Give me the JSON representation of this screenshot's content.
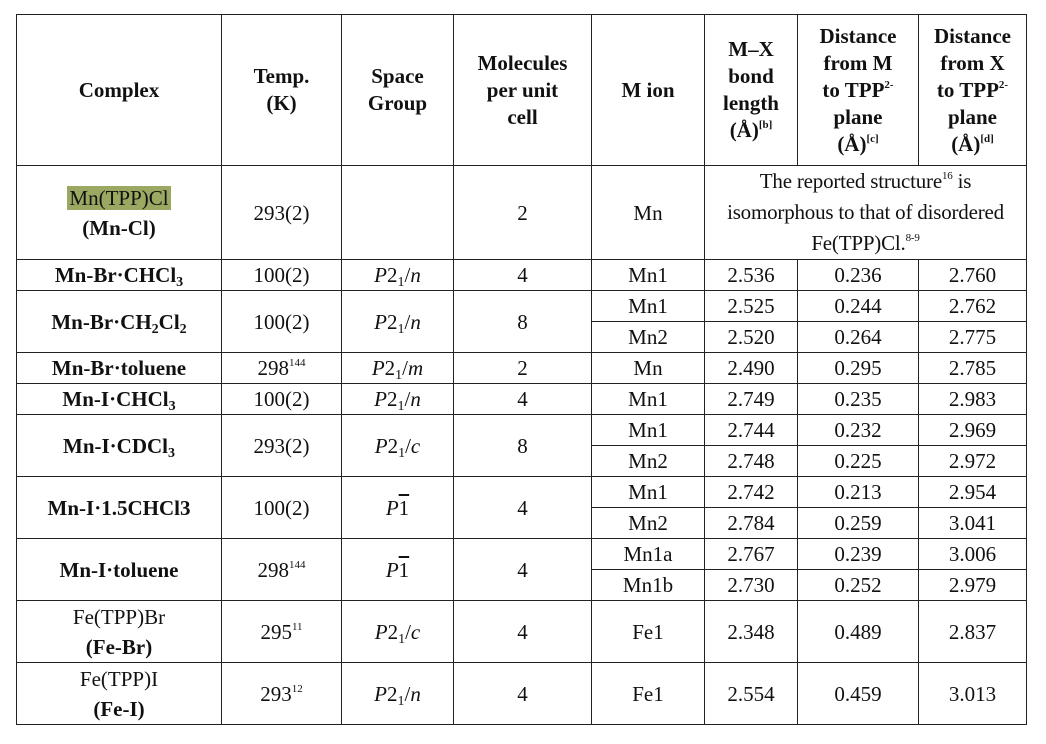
{
  "headers": {
    "complex": "Complex",
    "temp_1": "Temp.",
    "temp_2": "(K)",
    "space_1": "Space",
    "space_2": "Group",
    "mol_1": "Molecules",
    "mol_2": "per unit",
    "mol_3": "cell",
    "mion": "M ion",
    "mx_1": "M–X",
    "mx_2": "bond",
    "mx_3": "length",
    "mx_4": "(Å)",
    "mx_sup": "[b]",
    "dm_1": "Distance",
    "dm_2": "from M",
    "dm_3": "to TPP",
    "dm_sup": "2-",
    "dm_4": "plane",
    "dm_5": "(Å)",
    "dm_sup2": "[c]",
    "dx_1": "Distance",
    "dx_2": "from X",
    "dx_3": "to TPP",
    "dx_sup": "2-",
    "dx_4": "plane",
    "dx_5": "(Å)",
    "dx_sup2": "[d]"
  },
  "r1": {
    "name": "Mn(TPP)Cl",
    "label": "(Mn-Cl)",
    "temp": "293(2)",
    "mol": "2",
    "ion": "Mn",
    "note_1": "The reported structure",
    "note_1_sup": "16",
    "note_1_end": " is",
    "note_2": "isomorphous to that of disordered",
    "note_3": "Fe(TPP)Cl.",
    "note_3_sup": "8-9"
  },
  "r2": {
    "name_a": "Mn-Br·CHCl",
    "name_sub": "3",
    "temp": "100(2)",
    "sg_a": "P",
    "sg_2": "2",
    "sg_sub": "1",
    "sg_b": "/",
    "sg_c": "n",
    "mol": "4",
    "ion": "Mn1",
    "mx": "2.536",
    "dm": "0.236",
    "dx": "2.760"
  },
  "r3": {
    "name_a": "Mn-Br·CH",
    "name_sub1": "2",
    "name_b": "Cl",
    "name_sub2": "2",
    "temp": "100(2)",
    "sg_a": "P",
    "sg_2": "2",
    "sg_sub": "1",
    "sg_b": "/",
    "sg_c": "n",
    "mol": "8",
    "rows": [
      {
        "ion": "Mn1",
        "mx": "2.525",
        "dm": "0.244",
        "dx": "2.762"
      },
      {
        "ion": "Mn2",
        "mx": "2.520",
        "dm": "0.264",
        "dx": "2.775"
      }
    ]
  },
  "r4": {
    "name": "Mn-Br·toluene",
    "temp": "298",
    "temp_sup": "144",
    "sg_a": "P",
    "sg_2": "2",
    "sg_sub": "1",
    "sg_b": "/",
    "sg_c": "m",
    "mol": "2",
    "ion": "Mn",
    "mx": "2.490",
    "dm": "0.295",
    "dx": "2.785"
  },
  "r5": {
    "name_a": "Mn-I·CHCl",
    "name_sub": "3",
    "temp": "100(2)",
    "sg_a": "P",
    "sg_2": "2",
    "sg_sub": "1",
    "sg_b": "/",
    "sg_c": "n",
    "mol": "4",
    "ion": "Mn1",
    "mx": "2.749",
    "dm": "0.235",
    "dx": "2.983"
  },
  "r6": {
    "name_a": "Mn-I·CDCl",
    "name_sub": "3",
    "temp": "293(2)",
    "sg_a": "P",
    "sg_2": "2",
    "sg_sub": "1",
    "sg_b": "/",
    "sg_c": "c",
    "mol": "8",
    "rows": [
      {
        "ion": "Mn1",
        "mx": "2.744",
        "dm": "0.232",
        "dx": "2.969"
      },
      {
        "ion": "Mn2",
        "mx": "2.748",
        "dm": "0.225",
        "dx": "2.972"
      }
    ]
  },
  "r7": {
    "name": "Mn-I·1.5CHCl3",
    "temp": "100(2)",
    "sg_a": "P",
    "sg_b": "1",
    "mol": "4",
    "rows": [
      {
        "ion": "Mn1",
        "mx": "2.742",
        "dm": "0.213",
        "dx": "2.954"
      },
      {
        "ion": "Mn2",
        "mx": "2.784",
        "dm": "0.259",
        "dx": "3.041"
      }
    ]
  },
  "r8": {
    "name": "Mn-I·toluene",
    "temp": "298",
    "temp_sup": "144",
    "sg_a": "P",
    "sg_b": "1",
    "mol": "4",
    "rows": [
      {
        "ion": "Mn1a",
        "mx": "2.767",
        "dm": "0.239",
        "dx": "3.006"
      },
      {
        "ion": "Mn1b",
        "mx": "2.730",
        "dm": "0.252",
        "dx": "2.979"
      }
    ]
  },
  "r9": {
    "name": "Fe(TPP)Br",
    "label": "(Fe-Br)",
    "temp": "295",
    "temp_sup": "11",
    "sg_a": "P",
    "sg_2": "2",
    "sg_sub": "1",
    "sg_b": "/",
    "sg_c": "c",
    "mol": "4",
    "ion": "Fe1",
    "mx": "2.348",
    "dm": "0.489",
    "dx": "2.837"
  },
  "r10": {
    "name": "Fe(TPP)I",
    "label": "(Fe-I)",
    "temp": "293",
    "temp_sup": "12",
    "sg_a": "P",
    "sg_2": "2",
    "sg_sub": "1",
    "sg_b": "/",
    "sg_c": "n",
    "mol": "4",
    "ion": "Fe1",
    "mx": "2.554",
    "dm": "0.459",
    "dx": "3.013"
  },
  "colors": {
    "highlight": "#9aa861",
    "border": "#222222"
  }
}
